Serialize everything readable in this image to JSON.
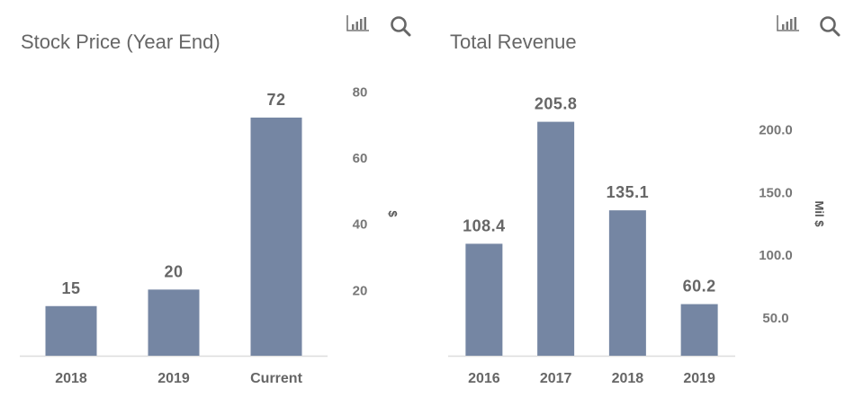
{
  "colors": {
    "bar": "#7586a3",
    "axis": "#dddddd",
    "text": "#666666"
  },
  "icons": {
    "chart_type": "bar-chart-icon",
    "zoom": "search-icon"
  },
  "chart_data": [
    {
      "type": "bar",
      "title": "Stock Price (Year End)",
      "categories": [
        "2018",
        "2019",
        "Current"
      ],
      "values": [
        15,
        20,
        72
      ],
      "data_labels": [
        "15",
        "20",
        "72"
      ],
      "xlabel": "",
      "ylabel": "$",
      "ylim": [
        0,
        85
      ],
      "yticks": [
        20,
        40,
        60,
        80
      ],
      "ytick_labels": [
        "20",
        "40",
        "60",
        "80"
      ],
      "yaxis_position": "right",
      "grid": false,
      "legend": "none"
    },
    {
      "type": "bar",
      "title": "Total Revenue",
      "categories": [
        "2016",
        "2017",
        "2018",
        "2019"
      ],
      "values": [
        108.4,
        205.8,
        135.1,
        60.2
      ],
      "data_labels": [
        "108.4",
        "205.8",
        "135.1",
        "60.2"
      ],
      "xlabel": "",
      "ylabel": "Mil $",
      "ylim": [
        19,
        222
      ],
      "yticks": [
        50,
        100,
        150,
        200
      ],
      "ytick_labels": [
        "50.0",
        "100.0",
        "150.0",
        "200.0"
      ],
      "yaxis_position": "right",
      "grid": false,
      "legend": "none"
    }
  ]
}
